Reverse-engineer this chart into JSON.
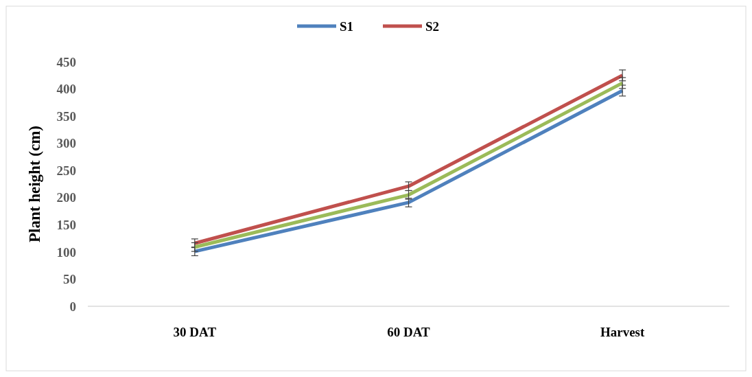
{
  "chart_data": {
    "type": "line",
    "ylabel": "Plant height (cm)",
    "categories": [
      "30 DAT",
      "60 DAT",
      "Harvest"
    ],
    "series": [
      {
        "name": "S1",
        "color": "#4f81bd",
        "values": [
          101,
          191,
          397
        ],
        "errors": [
          8,
          8,
          10
        ]
      },
      {
        "name": "S2",
        "color": "#c0504d",
        "values": [
          116,
          221,
          425
        ],
        "errors": [
          8,
          8,
          10
        ]
      },
      {
        "color": "#9bbb59",
        "values": [
          109,
          205,
          411
        ],
        "errors": [
          8,
          8,
          10
        ]
      }
    ],
    "ylim": [
      0,
      450
    ],
    "yticks": [
      0,
      50,
      100,
      150,
      200,
      250,
      300,
      350,
      400,
      450
    ],
    "grid": false,
    "legend": "top",
    "marker": "none",
    "line_style": "solid"
  }
}
